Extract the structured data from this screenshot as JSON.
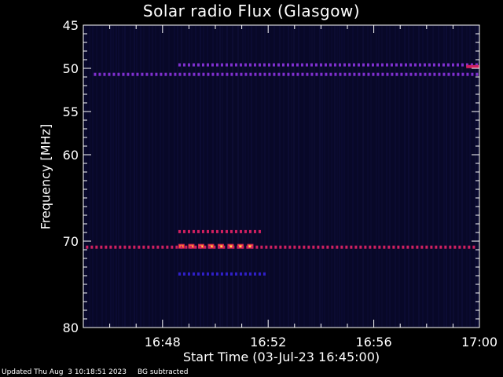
{
  "chart_data": {
    "type": "heatmap",
    "title": "Solar radio Flux (Glasgow)",
    "xlabel": "Start Time (03-Jul-23 16:45:00)",
    "ylabel": "Frequency [MHz]",
    "x_ticks": [
      "16:48",
      "16:52",
      "16:56",
      "17:00"
    ],
    "x_tick_minutes": [
      3,
      7,
      11,
      15
    ],
    "xlim_minutes": [
      0,
      15
    ],
    "y_ticks": [
      "45",
      "50",
      "55",
      "60",
      "70",
      "80"
    ],
    "y_tick_values": [
      45,
      50,
      55,
      60,
      70,
      80
    ],
    "ylim": [
      45,
      80
    ],
    "grid": false,
    "colormap": [
      "#0a0a30",
      "#3020c8",
      "#8030d0",
      "#d02060",
      "#ff6020",
      "#ffe060"
    ],
    "features": [
      {
        "name": "band 49.6 MHz",
        "freq_mhz": 49.6,
        "start_min": 3.6,
        "end_min": 15.0,
        "intensity": 0.45,
        "dashed": true
      },
      {
        "name": "band 50.7 MHz",
        "freq_mhz": 50.7,
        "start_min": 0.4,
        "end_min": 15.0,
        "intensity": 0.4,
        "dashed": true
      },
      {
        "name": "band 49.8 MHz",
        "freq_mhz": 49.8,
        "start_min": 14.5,
        "end_min": 15.0,
        "intensity": 0.6,
        "dashed": false
      },
      {
        "name": "burst 68.9 MHz",
        "freq_mhz": 68.9,
        "start_min": 3.6,
        "end_min": 6.8,
        "intensity": 0.5,
        "dashed": true
      },
      {
        "name": "burst 70.6 MHz",
        "freq_mhz": 70.6,
        "start_min": 3.6,
        "end_min": 6.8,
        "intensity": 1.0,
        "dashed": true
      },
      {
        "name": "band 70.7 MHz",
        "freq_mhz": 70.7,
        "start_min": 0.1,
        "end_min": 15.0,
        "intensity": 0.5,
        "dashed": true
      },
      {
        "name": "band 73.8 MHz",
        "freq_mhz": 73.8,
        "start_min": 3.6,
        "end_min": 7.0,
        "intensity": 0.15,
        "dashed": true
      }
    ]
  },
  "footer": {
    "updated": "Updated Thu Aug  3 10:18:51 2023",
    "note": "BG subtracted"
  }
}
